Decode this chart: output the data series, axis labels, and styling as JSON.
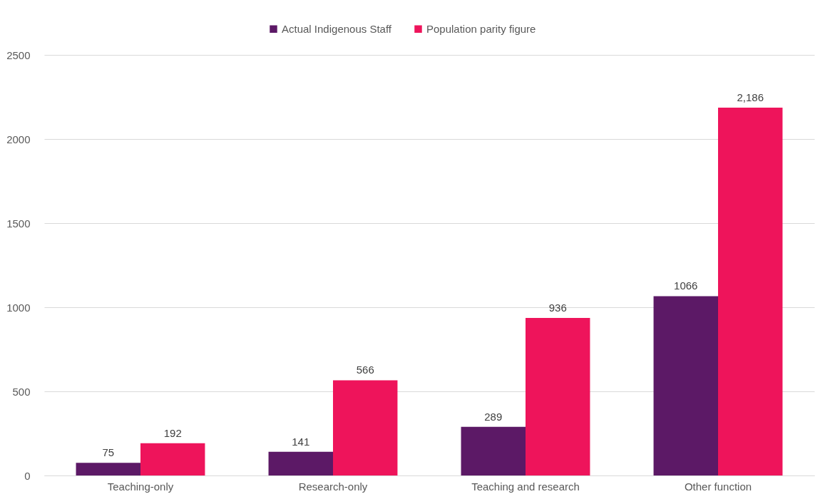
{
  "chart_data": {
    "type": "bar",
    "categories": [
      "Teaching-only",
      "Research-only",
      "Teaching and research",
      "Other function"
    ],
    "series": [
      {
        "name": "Actual Indigenous Staff",
        "color": "#5c1966",
        "values": [
          75,
          141,
          289,
          1066
        ],
        "value_labels": [
          "75",
          "141",
          "289",
          "1066"
        ]
      },
      {
        "name": "Population parity figure",
        "color": "#ee145b",
        "values": [
          192,
          566,
          936,
          2186
        ],
        "value_labels": [
          "192",
          "566",
          "936",
          "2,186"
        ]
      }
    ],
    "ylim": [
      0,
      2500
    ],
    "yticks": [
      0,
      500,
      1000,
      1500,
      2000,
      2500
    ],
    "grid": "y",
    "legend": "top"
  }
}
